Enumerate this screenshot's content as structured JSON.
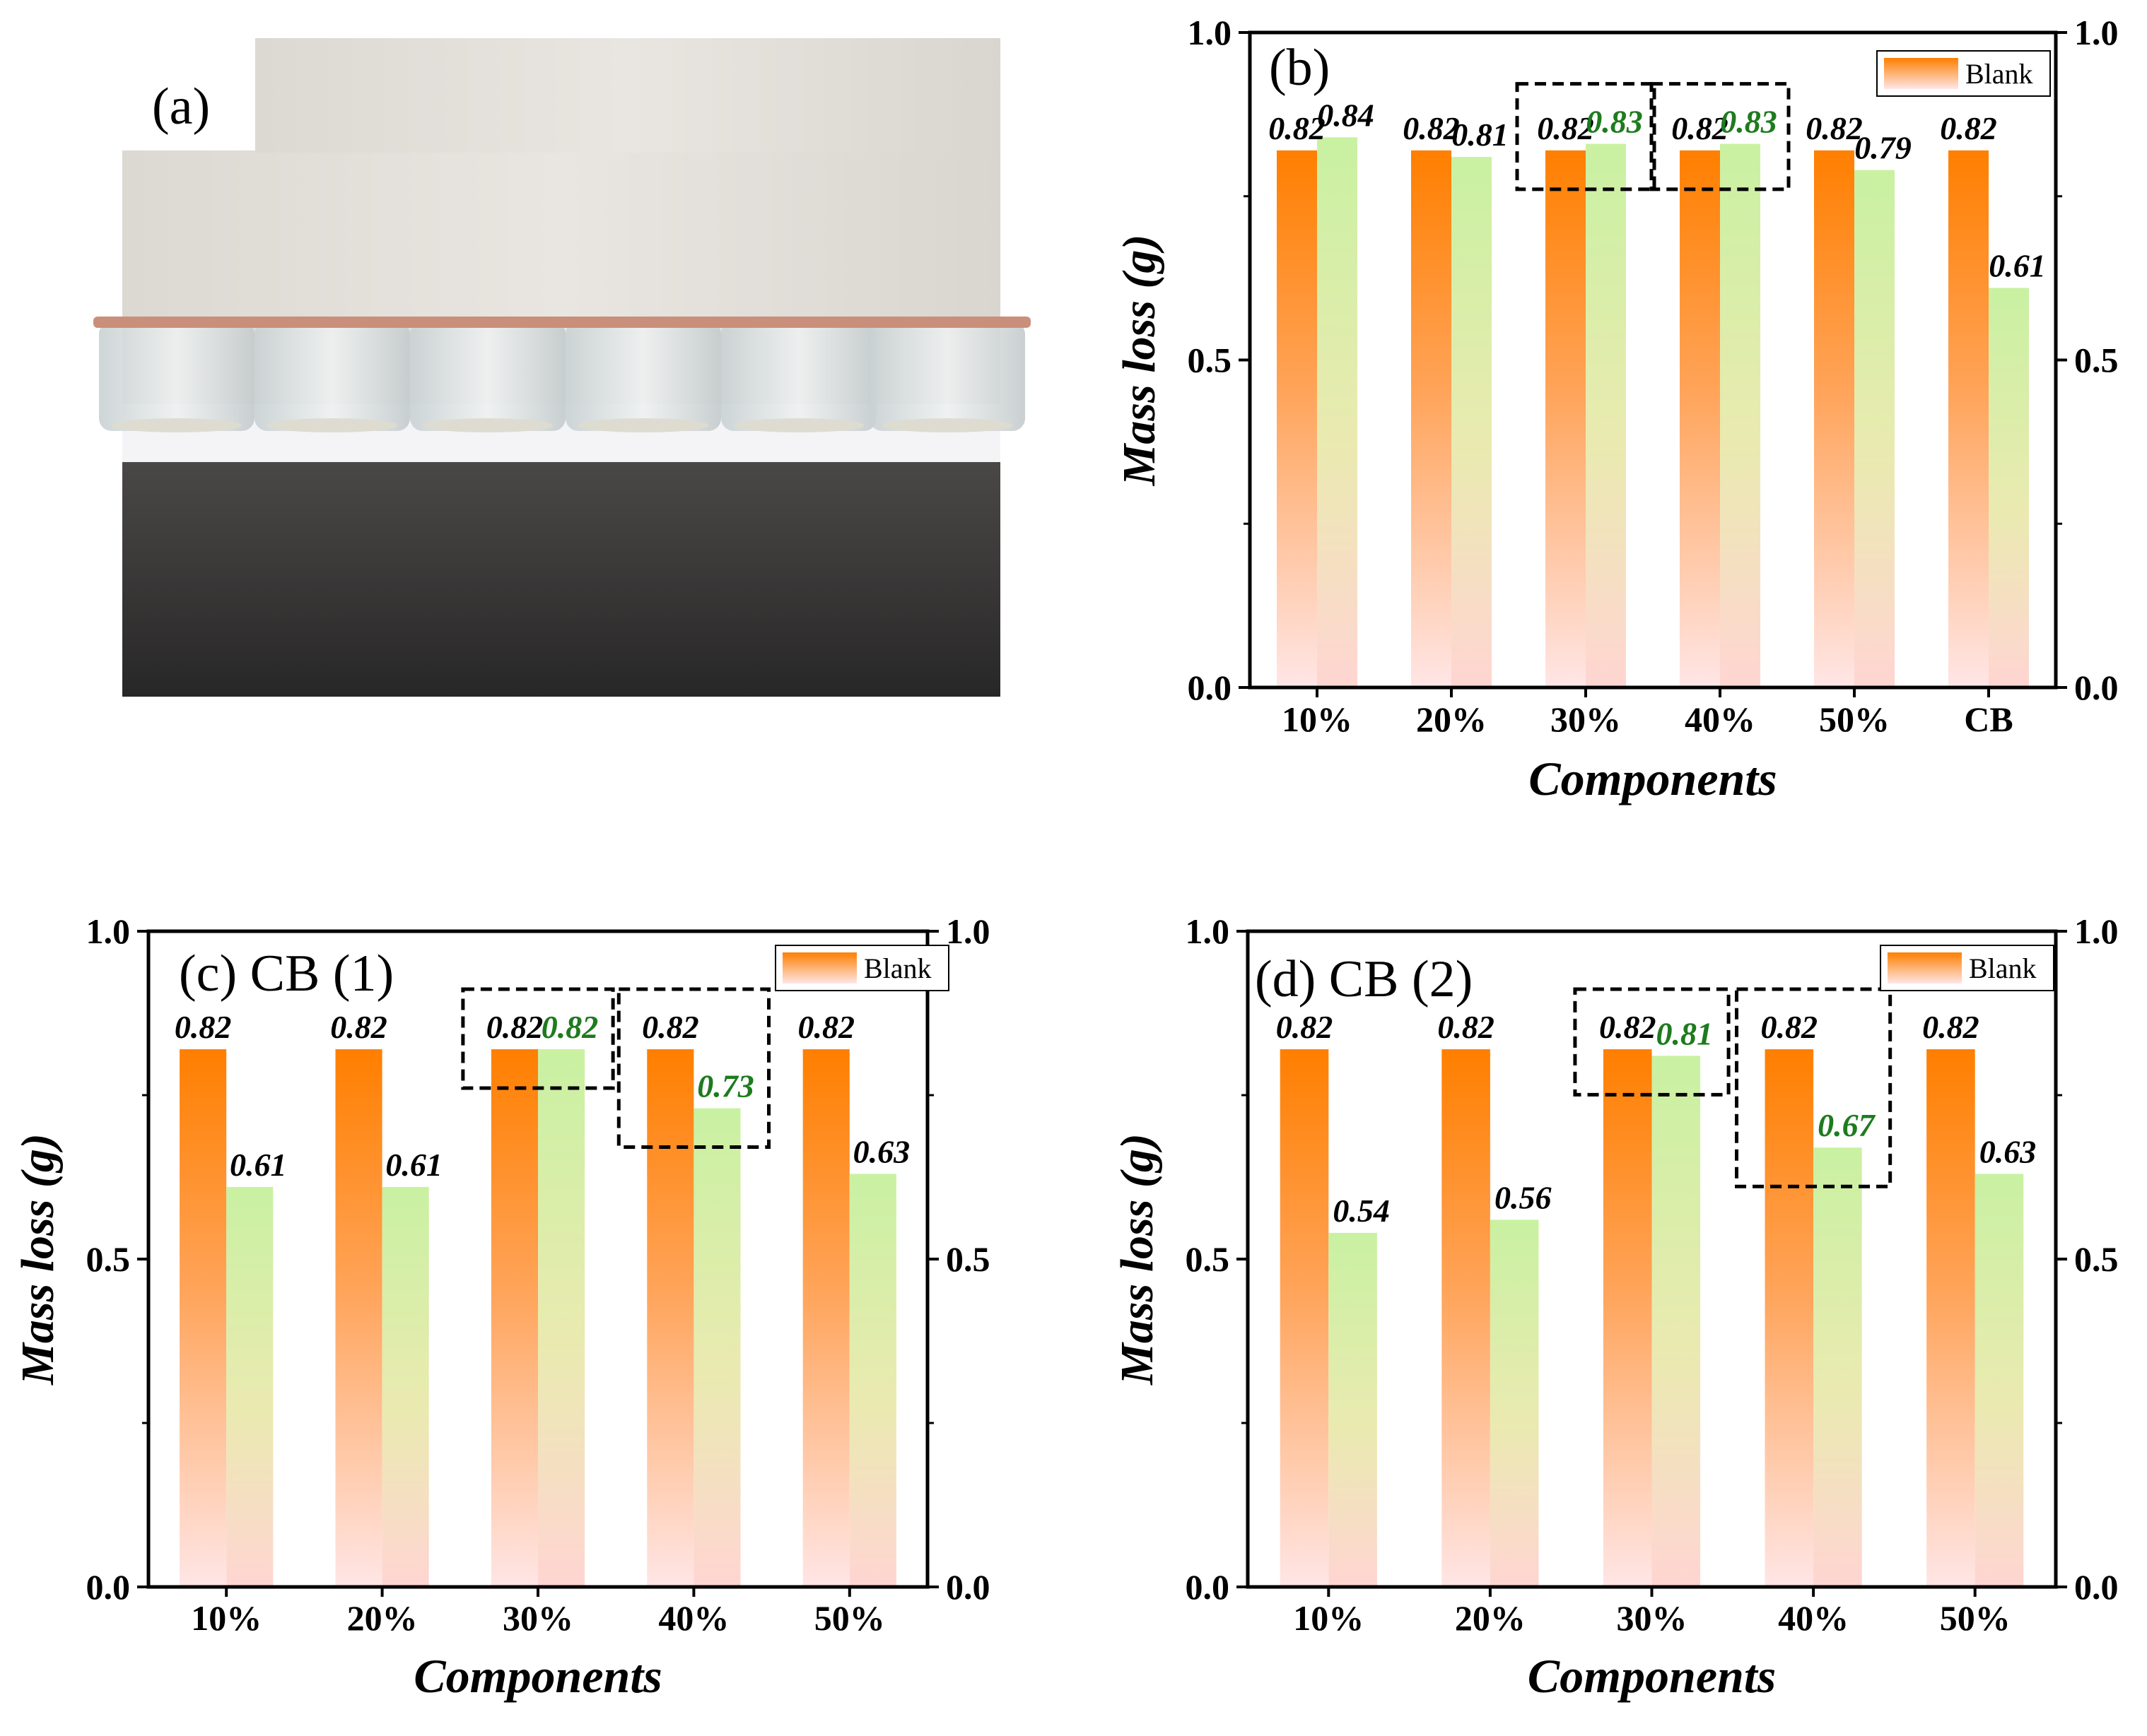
{
  "panel_a": {
    "label": "(a)"
  },
  "colors": {
    "blank_top": "#ff7f00",
    "blank_bottom": "#ffe3e3",
    "sample_top": "#c8f0a0",
    "sample_bottom": "#ffd7d2",
    "sample_label": "#1e7b1e",
    "axis": "#000000"
  },
  "chart_data": [
    {
      "panel": "b",
      "type": "bar",
      "title": "(b)",
      "xlabel": "Components",
      "ylabel": "Mass loss (g)",
      "ylim": [
        0,
        1.0
      ],
      "yticks": [
        "0.0",
        "0.5",
        "1.0"
      ],
      "categories": [
        "10%",
        "20%",
        "30%",
        "40%",
        "50%",
        "CB"
      ],
      "legend": "top-right",
      "grid": false,
      "series": [
        {
          "name": "Blank",
          "values": [
            0.82,
            0.82,
            0.82,
            0.82,
            0.82,
            0.82
          ],
          "labels": [
            "0.82",
            "0.82",
            "0.82",
            "0.82",
            "0.82",
            "0.82"
          ]
        },
        {
          "values": [
            0.84,
            0.81,
            0.83,
            0.83,
            0.79,
            0.61
          ],
          "labels": [
            "0.84",
            "0.81",
            "0.83",
            "0.83",
            "0.79",
            "0.61"
          ],
          "green_label": [
            false,
            false,
            true,
            true,
            false,
            false
          ]
        }
      ],
      "highlight": [
        "30%",
        "40%"
      ]
    },
    {
      "panel": "c",
      "type": "bar",
      "title": "(c) CB (1)",
      "xlabel": "Components",
      "ylabel": "Mass loss (g)",
      "ylim": [
        0,
        1.0
      ],
      "yticks": [
        "0.0",
        "0.5",
        "1.0"
      ],
      "categories": [
        "10%",
        "20%",
        "30%",
        "40%",
        "50%"
      ],
      "legend": "top-right",
      "grid": false,
      "series": [
        {
          "name": "Blank",
          "values": [
            0.82,
            0.82,
            0.82,
            0.82,
            0.82
          ],
          "labels": [
            "0.82",
            "0.82",
            "0.82",
            "0.82",
            "0.82"
          ]
        },
        {
          "values": [
            0.61,
            0.61,
            0.82,
            0.73,
            0.63
          ],
          "labels": [
            "0.61",
            "0.61",
            "0.82",
            "0.73",
            "0.63"
          ],
          "green_label": [
            false,
            false,
            true,
            true,
            false
          ]
        }
      ],
      "highlight": [
        "30%",
        "40%"
      ]
    },
    {
      "panel": "d",
      "type": "bar",
      "title": "(d) CB (2)",
      "xlabel": "Components",
      "ylabel": "Mass loss (g)",
      "ylim": [
        0,
        1.0
      ],
      "yticks": [
        "0.0",
        "0.5",
        "1.0"
      ],
      "categories": [
        "10%",
        "20%",
        "30%",
        "40%",
        "50%"
      ],
      "legend": "top-right",
      "grid": false,
      "series": [
        {
          "name": "Blank",
          "values": [
            0.82,
            0.82,
            0.82,
            0.82,
            0.82
          ],
          "labels": [
            "0.82",
            "0.82",
            "0.82",
            "0.82",
            "0.82"
          ]
        },
        {
          "values": [
            0.54,
            0.56,
            0.81,
            0.67,
            0.63
          ],
          "labels": [
            "0.54",
            "0.56",
            "0.81",
            "0.67",
            "0.63"
          ],
          "green_label": [
            false,
            false,
            true,
            true,
            false
          ]
        }
      ],
      "highlight": [
        "30%",
        "40%"
      ]
    }
  ]
}
